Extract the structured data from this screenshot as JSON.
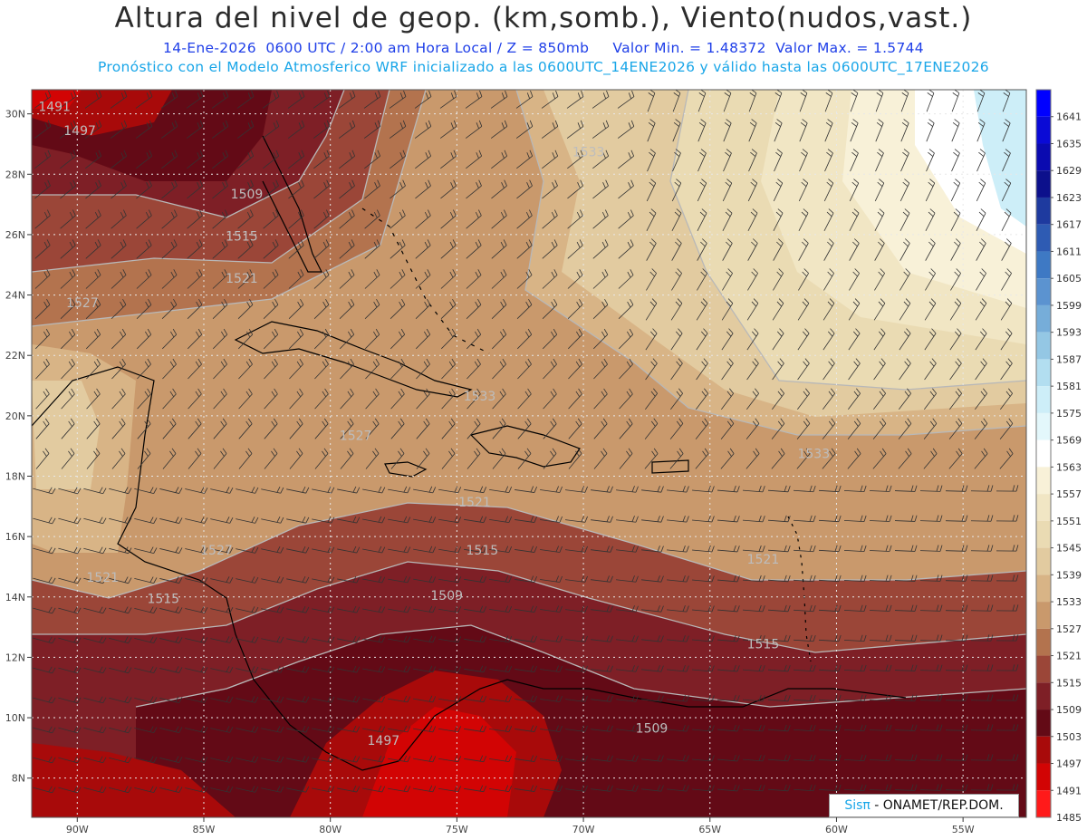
{
  "title": "Altura del nivel de geop. (km,somb.), Viento(nudos,vast.)",
  "subtitle": {
    "line1_date": "14-Ene-2026",
    "line1_time": "0600 UTC / 2:00 am Hora Local / Z = 850mb",
    "line1_min": "Valor Min. = 1.48372",
    "line1_max": "Valor Max. = 1.5744",
    "line2": "Pronóstico con el Modelo Atmosferico WRF inicializado a las 0600UTC_14ENE2026 y válido hasta las  0600UTC_17ENE2026"
  },
  "credit": {
    "logo": "Sisπ",
    "text": " - ONAMET/REP.DOM."
  },
  "map": {
    "lon_range": [
      -91.8,
      -52.5
    ],
    "lat_range": [
      6.7,
      30.8
    ],
    "lon_ticks": [
      "90W",
      "85W",
      "80W",
      "75W",
      "70W",
      "65W",
      "60W",
      "55W"
    ],
    "lat_ticks": [
      "8N",
      "10N",
      "12N",
      "14N",
      "16N",
      "18N",
      "20N",
      "22N",
      "24N",
      "26N",
      "28N",
      "30N"
    ],
    "contour_labels": [
      {
        "text": "1491",
        "lon": -90.9,
        "lat": 30.1
      },
      {
        "text": "1497",
        "lon": -89.9,
        "lat": 29.3
      },
      {
        "text": "1509",
        "lon": -83.3,
        "lat": 27.2
      },
      {
        "text": "1515",
        "lon": -83.5,
        "lat": 25.8
      },
      {
        "text": "1521",
        "lon": -83.5,
        "lat": 24.4
      },
      {
        "text": "1527",
        "lon": -89.8,
        "lat": 23.6
      },
      {
        "text": "1533",
        "lon": -69.8,
        "lat": 28.6
      },
      {
        "text": "1527",
        "lon": -79.0,
        "lat": 19.2
      },
      {
        "text": "1533",
        "lon": -74.1,
        "lat": 20.5
      },
      {
        "text": "1521",
        "lon": -74.3,
        "lat": 17.0
      },
      {
        "text": "1527",
        "lon": -84.5,
        "lat": 15.4
      },
      {
        "text": "1521",
        "lon": -89.0,
        "lat": 14.5
      },
      {
        "text": "1515",
        "lon": -86.6,
        "lat": 13.8
      },
      {
        "text": "1515",
        "lon": -74.0,
        "lat": 15.4
      },
      {
        "text": "1509",
        "lon": -75.4,
        "lat": 13.9
      },
      {
        "text": "1533",
        "lon": -60.9,
        "lat": 18.6
      },
      {
        "text": "1521",
        "lon": -62.9,
        "lat": 15.1
      },
      {
        "text": "1515",
        "lon": -62.9,
        "lat": 12.3
      },
      {
        "text": "1509",
        "lon": -67.3,
        "lat": 9.5
      },
      {
        "text": "1497",
        "lon": -77.9,
        "lat": 9.1
      }
    ]
  },
  "colorbar": {
    "labels": [
      "1641",
      "1635",
      "1629",
      "1623",
      "1617",
      "1611",
      "1605",
      "1599",
      "1593",
      "1587",
      "1581",
      "1575",
      "1569",
      "1563",
      "1557",
      "1551",
      "1545",
      "1539",
      "1533",
      "1527",
      "1521",
      "1515",
      "1509",
      "1503",
      "1497",
      "1491",
      "1485"
    ],
    "colors": [
      "#0000ff",
      "#0a0ad6",
      "#0a0ab0",
      "#0c108c",
      "#1e3a9f",
      "#2e5bb3",
      "#3e79c4",
      "#5b93d0",
      "#76add9",
      "#94c7e4",
      "#b2def0",
      "#cdeef8",
      "#e3f7fb",
      "#ffffff",
      "#f8f1d8",
      "#f1e6c4",
      "#eadbb3",
      "#e2cba0",
      "#d8b486",
      "#c9996c",
      "#b3734e",
      "#9b4638",
      "#7e1f26",
      "#630a16",
      "#a80a0a",
      "#d20404",
      "#ff1a1a"
    ]
  }
}
